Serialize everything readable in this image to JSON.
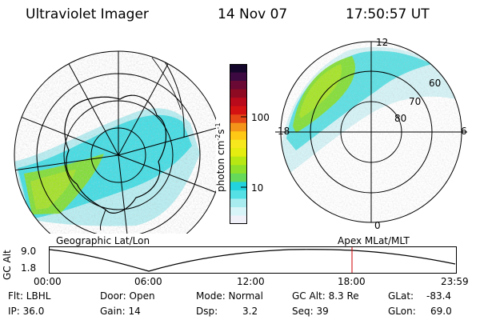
{
  "header": {
    "title": "Ultraviolet Imager",
    "date": "14 Nov 07",
    "time": "17:50:57 UT"
  },
  "left_panel": {
    "caption": "Geographic Lat/Lon"
  },
  "right_panel": {
    "caption": "Apex MLat/MLT",
    "mlt_labels": {
      "top": "12",
      "left": "18",
      "right": "6",
      "bottom": "0"
    },
    "lat_labels": [
      "60",
      "70",
      "80"
    ]
  },
  "colorbar": {
    "label": "photon cm",
    "label_exp1": "-2",
    "label_s": "s",
    "label_exp2": "-1",
    "tick_labels": [
      "100",
      "10"
    ],
    "colors": [
      "#f0f0f8",
      "#d8f4f8",
      "#a8ecf0",
      "#55e0e6",
      "#22d2dc",
      "#66d85a",
      "#8ee02a",
      "#b8e814",
      "#e4ec10",
      "#f6e81c",
      "#ffc814",
      "#f49418",
      "#e64816",
      "#d41212",
      "#b80a1a",
      "#8e0a22",
      "#6a0a34",
      "#3c0a40",
      "#14062a"
    ]
  },
  "timeline": {
    "ylabel": "GC Alt",
    "y_ticks": [
      "9.0",
      "1.8"
    ],
    "x_ticks": [
      "00:00",
      "06:00",
      "12:00",
      "18:00",
      "23:59"
    ],
    "marker_color": "#d00000"
  },
  "info": {
    "filter": "Flt: LBHL",
    "ip": "IP: 36.0",
    "door": "Door: Open",
    "gain": "Gain: 14",
    "mode": "Mode: Normal",
    "dsp_label": "Dsp:",
    "dsp_value": "3.2",
    "gc_alt": "GC Alt: 8.3 Re",
    "seq": "Seq: 39",
    "glat_label": "GLat:",
    "glat_value": "-83.4",
    "glon_label": "GLon:",
    "glon_value": "69.0"
  }
}
